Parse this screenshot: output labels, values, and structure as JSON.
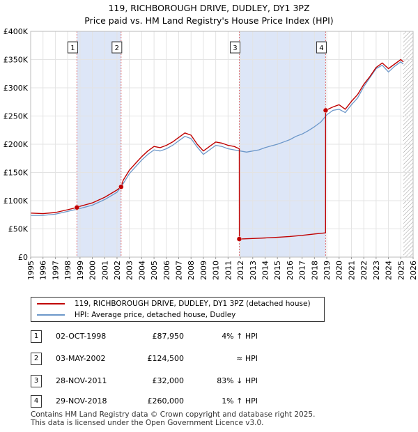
{
  "chart_data": {
    "type": "line",
    "title": "119, RICHBOROUGH DRIVE, DUDLEY, DY1 3PZ",
    "subtitle": "Price paid vs. HM Land Registry's House Price Index (HPI)",
    "xlim": [
      1995,
      2026
    ],
    "ylim": [
      0,
      400000
    ],
    "x_ticks": [
      1995,
      1996,
      1997,
      1998,
      1999,
      2000,
      2001,
      2002,
      2003,
      2004,
      2005,
      2006,
      2007,
      2008,
      2009,
      2010,
      2011,
      2012,
      2013,
      2014,
      2015,
      2016,
      2017,
      2018,
      2019,
      2020,
      2021,
      2022,
      2023,
      2024,
      2025,
      2026
    ],
    "y_ticks": [
      0,
      50000,
      100000,
      150000,
      200000,
      250000,
      300000,
      350000,
      400000
    ],
    "y_tick_labels": [
      "£0",
      "£50K",
      "£100K",
      "£150K",
      "£200K",
      "£250K",
      "£300K",
      "£350K",
      "£400K"
    ],
    "grid": true,
    "shaded_periods": [
      [
        1998.75,
        2002.33
      ],
      [
        2011.91,
        2018.91
      ]
    ],
    "future_hatch_from": 2025.2,
    "series": [
      {
        "name": "hpi",
        "label": "HPI: Average price, detached house, Dudley",
        "color": "#6c97c9",
        "x": [
          1995.0,
          1996.0,
          1997.0,
          1998.0,
          1999.0,
          2000.0,
          2001.0,
          2002.0,
          2002.5,
          2003.0,
          2003.5,
          2004.0,
          2004.5,
          2005.0,
          2005.5,
          2006.0,
          2006.5,
          2007.0,
          2007.5,
          2008.0,
          2008.5,
          2009.0,
          2009.5,
          2010.0,
          2010.5,
          2011.0,
          2011.5,
          2012.0,
          2012.5,
          2013.0,
          2013.5,
          2014.0,
          2014.5,
          2015.0,
          2015.5,
          2016.0,
          2016.5,
          2017.0,
          2017.5,
          2018.0,
          2018.5,
          2019.0,
          2019.5,
          2020.0,
          2020.5,
          2021.0,
          2021.5,
          2022.0,
          2022.5,
          2023.0,
          2023.5,
          2024.0,
          2024.5,
          2025.0,
          2025.2
        ],
        "y": [
          74000,
          74000,
          76000,
          81000,
          86000,
          92000,
          102000,
          115000,
          130000,
          148000,
          160000,
          172000,
          182000,
          190000,
          188000,
          192000,
          198000,
          206000,
          214000,
          210000,
          195000,
          182000,
          190000,
          198000,
          196000,
          192000,
          190000,
          188000,
          186000,
          188000,
          190000,
          194000,
          197000,
          200000,
          204000,
          208000,
          214000,
          218000,
          224000,
          231000,
          239000,
          252000,
          260000,
          262000,
          256000,
          270000,
          282000,
          302000,
          318000,
          334000,
          340000,
          328000,
          338000,
          346000,
          342000
        ]
      },
      {
        "name": "price_paid",
        "label": "119, RICHBOROUGH DRIVE, DUDLEY, DY1 3PZ (detached house)",
        "color": "#c00000",
        "x": [
          1995.0,
          1996.0,
          1997.0,
          1998.0,
          1998.75,
          1999.0,
          2000.0,
          2001.0,
          2002.0,
          2002.33,
          2002.5,
          2003.0,
          2003.5,
          2004.0,
          2004.5,
          2005.0,
          2005.5,
          2006.0,
          2006.5,
          2007.0,
          2007.5,
          2008.0,
          2008.5,
          2009.0,
          2009.5,
          2010.0,
          2010.5,
          2011.0,
          2011.5,
          2011.91,
          2011.92,
          2013.0,
          2014.0,
          2015.0,
          2016.0,
          2017.0,
          2018.0,
          2018.9,
          2018.91,
          2019.5,
          2020.0,
          2020.5,
          2021.0,
          2021.5,
          2022.0,
          2022.5,
          2023.0,
          2023.5,
          2024.0,
          2024.5,
          2025.0,
          2025.2
        ],
        "y": [
          78000,
          77000,
          79000,
          84000,
          87950,
          90000,
          96000,
          106000,
          119000,
          124500,
          136000,
          154000,
          166000,
          178000,
          188000,
          196000,
          194000,
          198000,
          204000,
          212000,
          220000,
          216000,
          200000,
          188000,
          196000,
          204000,
          202000,
          198000,
          196000,
          192000,
          32000,
          33000,
          34000,
          35000,
          36500,
          38500,
          41000,
          43000,
          260000,
          266000,
          270000,
          262000,
          276000,
          288000,
          306000,
          320000,
          336000,
          344000,
          334000,
          342000,
          350000,
          346000
        ]
      }
    ],
    "sales": [
      {
        "num": "1",
        "x": 1998.75,
        "price": 87950
      },
      {
        "num": "2",
        "x": 2002.33,
        "price": 124500
      },
      {
        "num": "3",
        "x": 2011.91,
        "price": 32000
      },
      {
        "num": "4",
        "x": 2018.91,
        "price": 260000
      }
    ]
  },
  "legend": {
    "property_label": "119, RICHBOROUGH DRIVE, DUDLEY, DY1 3PZ (detached house)",
    "hpi_label": "HPI: Average price, detached house, Dudley"
  },
  "transactions": [
    {
      "num": "1",
      "date": "02-OCT-1998",
      "price": "£87,950",
      "hpi": "4% ↑ HPI"
    },
    {
      "num": "2",
      "date": "03-MAY-2002",
      "price": "£124,500",
      "hpi": "≈ HPI"
    },
    {
      "num": "3",
      "date": "28-NOV-2011",
      "price": "£32,000",
      "hpi": "83% ↓ HPI"
    },
    {
      "num": "4",
      "date": "29-NOV-2018",
      "price": "£260,000",
      "hpi": "1% ↑ HPI"
    }
  ],
  "footer": {
    "line1": "Contains HM Land Registry data © Crown copyright and database right 2025.",
    "line2": "This data is licensed under the Open Government Licence v3.0."
  },
  "colors": {
    "property": "#c00000",
    "hpi": "#6c97c9",
    "shade": "#dde6f7",
    "vline": "#e07070"
  }
}
